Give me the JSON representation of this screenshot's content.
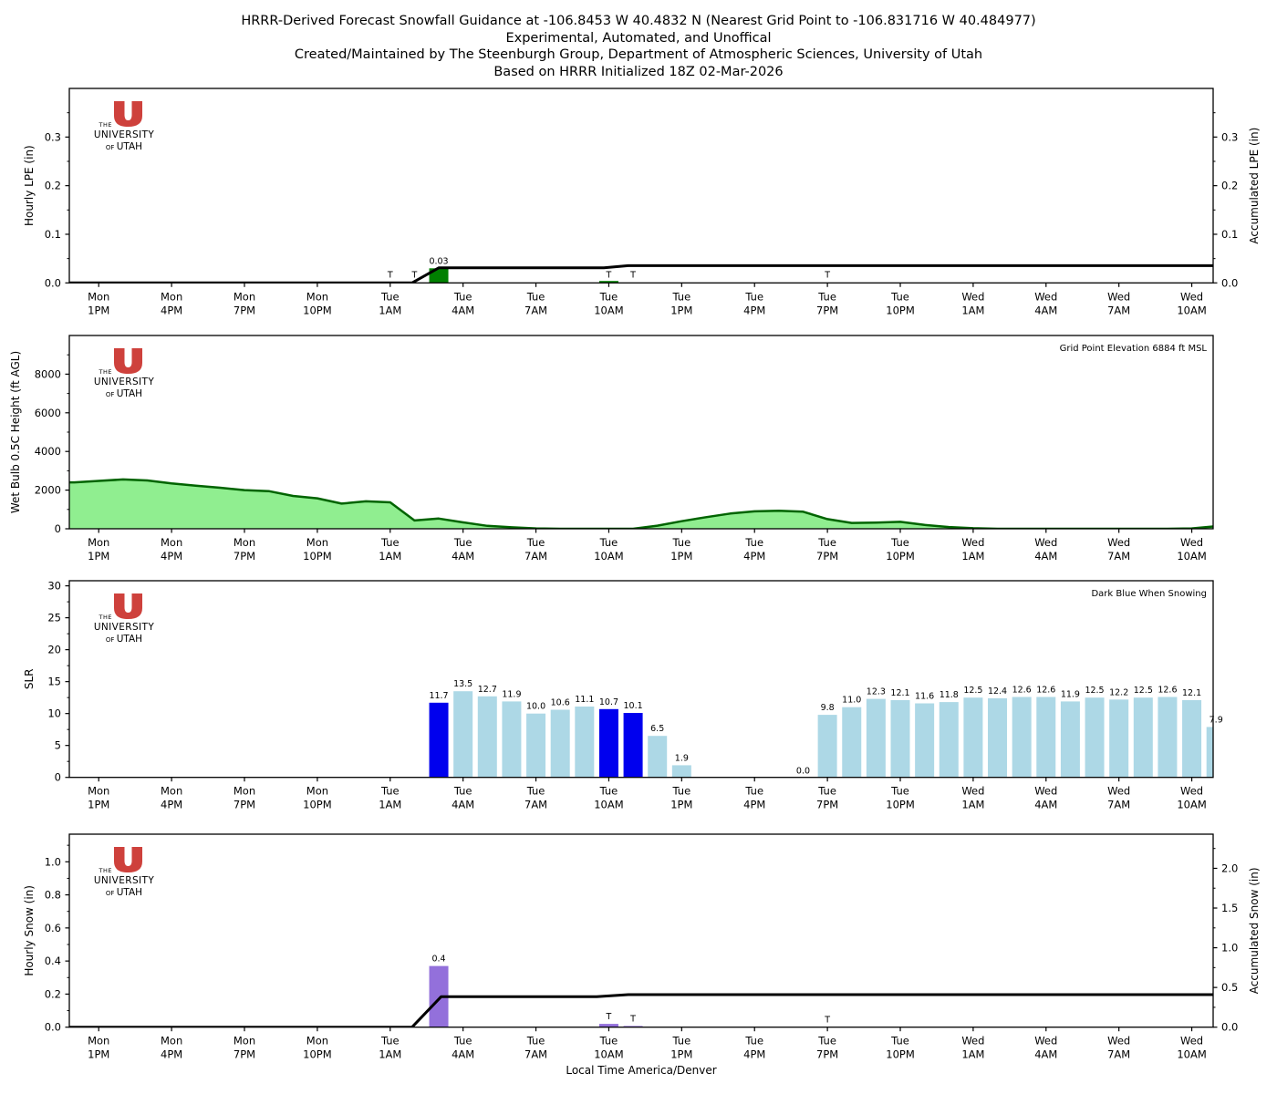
{
  "title": {
    "line1": "HRRR-Derived Forecast Snowfall Guidance at -106.8453 W 40.4832 N (Nearest Grid Point to -106.831716 W 40.484977)",
    "line2": "Experimental, Automated, and Unoffical",
    "line3": "Created/Maintained by The Steenburgh Group, Department of Atmospheric Sciences, University of Utah",
    "line4": "Based on HRRR Initialized 18Z 02-Mar-2026"
  },
  "xlabel": "Local Time America/Denver",
  "x_ticks": [
    {
      "day": "Mon",
      "time": "1PM"
    },
    {
      "day": "Mon",
      "time": "4PM"
    },
    {
      "day": "Mon",
      "time": "7PM"
    },
    {
      "day": "Mon",
      "time": "10PM"
    },
    {
      "day": "Tue",
      "time": "1AM"
    },
    {
      "day": "Tue",
      "time": "4AM"
    },
    {
      "day": "Tue",
      "time": "7AM"
    },
    {
      "day": "Tue",
      "time": "10AM"
    },
    {
      "day": "Tue",
      "time": "1PM"
    },
    {
      "day": "Tue",
      "time": "4PM"
    },
    {
      "day": "Tue",
      "time": "7PM"
    },
    {
      "day": "Tue",
      "time": "10PM"
    },
    {
      "day": "Wed",
      "time": "1AM"
    },
    {
      "day": "Wed",
      "time": "4AM"
    },
    {
      "day": "Wed",
      "time": "7AM"
    },
    {
      "day": "Wed",
      "time": "10AM"
    }
  ],
  "logo": {
    "the": "THE",
    "university": "UNIVERSITY",
    "of": "OF",
    "utah": "UTAH",
    "red": "#CE413C",
    "gray": "#8a8a8a"
  },
  "chart_data": [
    {
      "id": "hourly-lpe",
      "type": "bar",
      "ylabel": "Hourly LPE (in)",
      "ylabel_right": "Accumulated LPE (in)",
      "ylim": [
        0,
        0.4
      ],
      "right_same_scale": true,
      "yticks": [
        {
          "v": 0,
          "label": "0.0"
        },
        {
          "v": 0.1,
          "label": "0.1"
        },
        {
          "v": 0.2,
          "label": "0.2"
        },
        {
          "v": 0.3,
          "label": "0.3"
        }
      ],
      "bar_color": "#008000",
      "bars": [
        {
          "hour": 15,
          "value": 0.03,
          "label": "0.03"
        },
        {
          "hour": 22,
          "value": 0.004,
          "label": ""
        }
      ],
      "trace_marks": [
        {
          "hour": 13,
          "label": "T"
        },
        {
          "hour": 14,
          "label": "T"
        },
        {
          "hour": 22,
          "label": "T"
        },
        {
          "hour": 23,
          "label": "T"
        },
        {
          "hour": 31,
          "label": "T"
        }
      ],
      "accumulated_line": {
        "color": "#000000",
        "points": [
          [
            -0.21,
            0
          ],
          [
            13.9,
            0
          ],
          [
            15,
            0.031
          ],
          [
            21.8,
            0.031
          ],
          [
            22.8,
            0.0355
          ],
          [
            47,
            0.0355
          ]
        ]
      }
    },
    {
      "id": "wet-bulb-height",
      "type": "area",
      "ylabel": "Wet Bulb 0.5C Height (ft AGL)",
      "annotation": "Grid Point Elevation 6884 ft MSL",
      "ylim": [
        0,
        10000
      ],
      "yticks": [
        {
          "v": 0,
          "label": "0"
        },
        {
          "v": 2000,
          "label": "2000"
        },
        {
          "v": 4000,
          "label": "4000"
        },
        {
          "v": 6000,
          "label": "6000"
        },
        {
          "v": 8000,
          "label": "8000"
        }
      ],
      "fill_color": "#90EE90",
      "line_color": "#006400",
      "hours_start": 0,
      "values": [
        2400,
        2475,
        2550,
        2500,
        2350,
        2225,
        2125,
        2000,
        1950,
        1700,
        1575,
        1300,
        1420,
        1370,
        430,
        530,
        330,
        150,
        75,
        20,
        0,
        0,
        0,
        0,
        160,
        390,
        600,
        790,
        900,
        930,
        880,
        500,
        300,
        320,
        360,
        200,
        90,
        30,
        0,
        0,
        0,
        0,
        0,
        0,
        0,
        0,
        20,
        130
      ]
    },
    {
      "id": "slr",
      "type": "bar",
      "ylabel": "SLR",
      "annotation": "Dark Blue When Snowing",
      "ylim": [
        0,
        30.8
      ],
      "yticks": [
        {
          "v": 0,
          "label": "0"
        },
        {
          "v": 5,
          "label": "5"
        },
        {
          "v": 10,
          "label": "10"
        },
        {
          "v": 15,
          "label": "15"
        },
        {
          "v": 20,
          "label": "20"
        },
        {
          "v": 25,
          "label": "25"
        },
        {
          "v": 30,
          "label": "30"
        }
      ],
      "colors": {
        "snowing": "#0000EE",
        "not_snowing": "#ADD8E6"
      },
      "bars": [
        {
          "hour": 15,
          "value": 11.7,
          "label": "11.7",
          "snowing": true
        },
        {
          "hour": 16,
          "value": 13.5,
          "label": "13.5",
          "snowing": false
        },
        {
          "hour": 17,
          "value": 12.7,
          "label": "12.7",
          "snowing": false
        },
        {
          "hour": 18,
          "value": 11.9,
          "label": "11.9",
          "snowing": false
        },
        {
          "hour": 19,
          "value": 10.0,
          "label": "10.0",
          "snowing": false
        },
        {
          "hour": 20,
          "value": 10.6,
          "label": "10.6",
          "snowing": false
        },
        {
          "hour": 21,
          "value": 11.1,
          "label": "11.1",
          "snowing": false
        },
        {
          "hour": 22,
          "value": 10.7,
          "label": "10.7",
          "snowing": true
        },
        {
          "hour": 23,
          "value": 10.1,
          "label": "10.1",
          "snowing": true
        },
        {
          "hour": 24,
          "value": 6.5,
          "label": "6.5",
          "snowing": false
        },
        {
          "hour": 25,
          "value": 1.9,
          "label": "1.9",
          "snowing": false
        },
        {
          "hour": 31,
          "value": 9.8,
          "label": "9.8",
          "snowing": false
        },
        {
          "hour": 32,
          "value": 11.0,
          "label": "11.0",
          "snowing": false
        },
        {
          "hour": 33,
          "value": 12.3,
          "label": "12.3",
          "snowing": false
        },
        {
          "hour": 34,
          "value": 12.1,
          "label": "12.1",
          "snowing": false
        },
        {
          "hour": 35,
          "value": 11.6,
          "label": "11.6",
          "snowing": false
        },
        {
          "hour": 36,
          "value": 11.8,
          "label": "11.8",
          "snowing": false
        },
        {
          "hour": 37,
          "value": 12.5,
          "label": "12.5",
          "snowing": false
        },
        {
          "hour": 38,
          "value": 12.4,
          "label": "12.4",
          "snowing": false
        },
        {
          "hour": 39,
          "value": 12.6,
          "label": "12.6",
          "snowing": false
        },
        {
          "hour": 40,
          "value": 12.6,
          "label": "12.6",
          "snowing": false
        },
        {
          "hour": 41,
          "value": 11.9,
          "label": "11.9",
          "snowing": false
        },
        {
          "hour": 42,
          "value": 12.5,
          "label": "12.5",
          "snowing": false
        },
        {
          "hour": 43,
          "value": 12.2,
          "label": "12.2",
          "snowing": false
        },
        {
          "hour": 44,
          "value": 12.5,
          "label": "12.5",
          "snowing": false
        },
        {
          "hour": 45,
          "value": 12.6,
          "label": "12.6",
          "snowing": false
        },
        {
          "hour": 46,
          "value": 12.1,
          "label": "12.1",
          "snowing": false
        },
        {
          "hour": 47,
          "value": 7.9,
          "label": "7.9",
          "snowing": false
        }
      ],
      "zero_labels": [
        {
          "hour": 30,
          "label": "0.0"
        }
      ]
    },
    {
      "id": "hourly-snow",
      "type": "bar",
      "ylabel": "Hourly Snow (in)",
      "ylabel_right": "Accumulated Snow (in)",
      "ylim": [
        0,
        1.167
      ],
      "ylim_right": [
        0,
        2.43
      ],
      "yticks": [
        {
          "v": 0,
          "label": "0.0"
        },
        {
          "v": 0.2,
          "label": "0.2"
        },
        {
          "v": 0.4,
          "label": "0.4"
        },
        {
          "v": 0.6,
          "label": "0.6"
        },
        {
          "v": 0.8,
          "label": "0.8"
        },
        {
          "v": 1.0,
          "label": "1.0"
        }
      ],
      "yticks_right": [
        {
          "v": 0,
          "label": "0.0"
        },
        {
          "v": 0.5,
          "label": "0.5"
        },
        {
          "v": 1.0,
          "label": "1.0"
        },
        {
          "v": 1.5,
          "label": "1.5"
        },
        {
          "v": 2.0,
          "label": "2.0"
        }
      ],
      "bar_color": "#9370DB",
      "bars": [
        {
          "hour": 15,
          "value": 0.37,
          "label": "0.4"
        },
        {
          "hour": 22,
          "value": 0.02,
          "label": "T"
        },
        {
          "hour": 23,
          "value": 0.007,
          "label": "T"
        },
        {
          "hour": 31,
          "value": 0,
          "label": "T"
        }
      ],
      "accumulated_line": {
        "color": "#000000",
        "axis": "right",
        "points": [
          [
            -0.21,
            0
          ],
          [
            13.9,
            0
          ],
          [
            15.1,
            0.385
          ],
          [
            21.5,
            0.385
          ],
          [
            22.8,
            0.41
          ],
          [
            47,
            0.41
          ]
        ]
      }
    }
  ]
}
